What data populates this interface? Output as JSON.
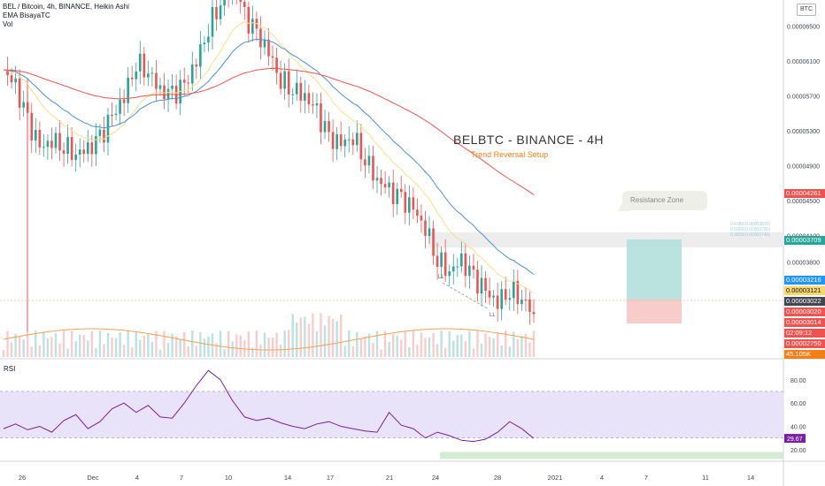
{
  "header": {
    "line1": "BEL / Bitcoin, 4h, BINANCE, Heikin Ashi",
    "line2": "EMA BisayaTC",
    "line3": "Vol"
  },
  "currency_badge": "BTC",
  "annotation": {
    "title": "BELBTC - BINANCE - 4H",
    "subtitle": "Trend Reversal Setup",
    "callout": "Resistance Zone",
    "ll1": "LL",
    "ll2": "LL",
    "fib_lines": [
      "0.6180(0.00003820)",
      "0.5000(0.00003780)",
      "0.3820(0.00003740)"
    ]
  },
  "rsi_label": "RSI",
  "colors": {
    "up": "#26a69a",
    "down": "#ef5350",
    "ema_fast": "#4a90d9",
    "ema_slow": "#ef5350",
    "ema_mid": "#f5e08a",
    "rsi": "#7b1fa2",
    "rsi_band": "#e8e3f8",
    "volume_ma": "#f5a05a",
    "long_target": "#b2dfdb",
    "long_stop": "#f8c6c6",
    "resistance": "#e8e8e8"
  },
  "chart_data": [
    {
      "type": "candlestick",
      "title": "BEL / Bitcoin, 4h, BINANCE, Heikin Ashi",
      "price_axis_ticks": [
        "0.00006500",
        "0.00006100",
        "0.00005700",
        "0.00005300",
        "0.00004900",
        "0.00004500",
        "0.00004100",
        "0.00003800",
        "0.00003500",
        "0.00003100",
        "0.00002700"
      ],
      "x_axis_ticks": [
        "26",
        "Dec",
        "4",
        "7",
        "10",
        "14",
        "17",
        "21",
        "24",
        "28",
        "2021",
        "4",
        "7",
        "11",
        "14"
      ],
      "price_labels": [
        {
          "text": "0.00004261",
          "color": "#ef5350"
        },
        {
          "text": "0.00003709",
          "color": "#26a69a"
        },
        {
          "text": "0.00003216",
          "color": "#2196f3"
        },
        {
          "text": "0.00003121",
          "color": "#f5d76e"
        },
        {
          "text": "0.00003022",
          "color": "#434651"
        },
        {
          "text": "0.00003020",
          "color": "#ef5350"
        },
        {
          "text": "0.00003014",
          "color": "#ef5350"
        },
        {
          "text": "02:09:12",
          "color": "#ef5350"
        },
        {
          "text": "0.00002750",
          "color": "#ef5350"
        },
        {
          "text": "45.105K",
          "color": "#f57f17"
        }
      ],
      "ylim": [
        2.7e-05,
        6.8e-05
      ],
      "series": [
        {
          "name": "price",
          "values": [
            6e-05,
            5.8e-05,
            5.4e-05,
            5.1e-05,
            5.2e-05,
            5.15e-05,
            5.05e-05,
            5.08e-05,
            5.2e-05,
            5.45e-05,
            5.7e-05,
            6.1e-05,
            6e-05,
            5.75e-05,
            5.7e-05,
            5.8e-05,
            6.1e-05,
            6.5e-05,
            6.8e-05,
            7e-05,
            6.6e-05,
            6.4e-05,
            6.2e-05,
            5.9e-05,
            5.8e-05,
            5.7e-05,
            5.5e-05,
            5.2e-05,
            5.15e-05,
            5.25e-05,
            5e-05,
            4.75e-05,
            4.6e-05,
            4.5e-05,
            4.4e-05,
            4.2e-05,
            3.85e-05,
            3.7e-05,
            3.8e-05,
            3.6e-05,
            3.45e-05,
            3.35e-05,
            3.5e-05,
            3.4e-05,
            3.2e-05
          ]
        }
      ]
    },
    {
      "type": "line",
      "title": "RSI",
      "y_axis_ticks": [
        "80.00",
        "60.00",
        "40.00",
        "20.00"
      ],
      "current_value": "29.67",
      "ylim": [
        10,
        95
      ],
      "band": [
        30,
        70
      ],
      "values": [
        38,
        42,
        37,
        40,
        35,
        45,
        50,
        38,
        44,
        55,
        60,
        52,
        58,
        48,
        47,
        60,
        75,
        88,
        80,
        62,
        48,
        45,
        47,
        43,
        40,
        38,
        42,
        44,
        40,
        38,
        36,
        35,
        52,
        41,
        38,
        30,
        35,
        32,
        28,
        27,
        29,
        35,
        44,
        38,
        29.67
      ]
    }
  ]
}
